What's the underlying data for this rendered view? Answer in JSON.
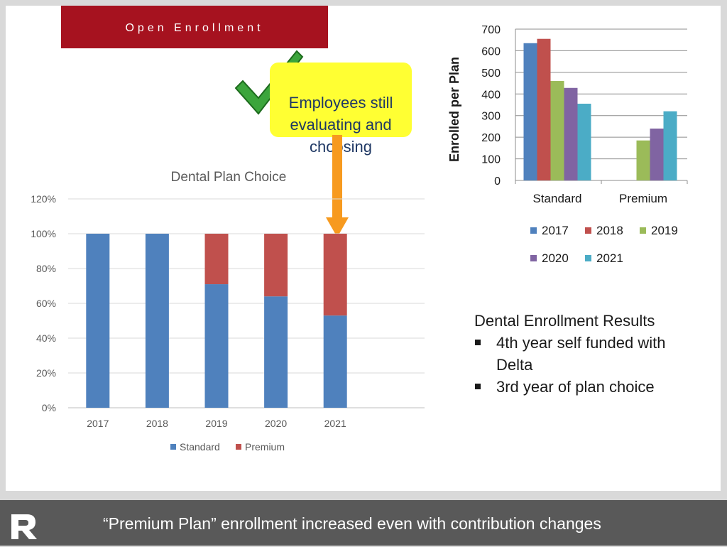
{
  "header": {
    "title": "Open Enrollment"
  },
  "callout": {
    "text": "Employees still\nevaluating and\nchoosing"
  },
  "results": {
    "heading": "Dental Enrollment Results",
    "bullets": [
      "4th year self funded with Delta",
      "3rd year of plan choice"
    ]
  },
  "footer": {
    "text": "“Premium Plan” enrollment increased even with contribution changes"
  },
  "colors": {
    "header": "#a6121f",
    "callout": "#ffff33",
    "arrow": "#f79a1f",
    "check": "#3ca53c",
    "standard": "#4f81bd",
    "premium": "#c0504d",
    "y2017": "#4f81bd",
    "y2018": "#c0504d",
    "y2019": "#9bbb59",
    "y2020": "#8064a2",
    "y2021": "#4bacc6"
  },
  "icons": {
    "check": "green-checkmark-icon",
    "arrow": "orange-down-arrow-icon",
    "logo": "r-logo-icon"
  },
  "chart_data": [
    {
      "id": "plan-choice",
      "type": "bar",
      "stacked": true,
      "title": "Dental Plan Choice",
      "categories": [
        "2017",
        "2018",
        "2019",
        "2020",
        "2021"
      ],
      "series": [
        {
          "name": "Standard",
          "values": [
            100,
            100,
            71,
            64,
            53
          ]
        },
        {
          "name": "Premium",
          "values": [
            0,
            0,
            29,
            36,
            47
          ]
        }
      ],
      "yticks": [
        "0%",
        "20%",
        "40%",
        "60%",
        "80%",
        "100%",
        "120%"
      ],
      "ylim": [
        0,
        120
      ],
      "grid": true,
      "legend": "bottom"
    },
    {
      "id": "enrolled",
      "type": "bar",
      "title": "",
      "ylabel": "Enrolled per Plan",
      "categories": [
        "Standard",
        "Premium"
      ],
      "series": [
        {
          "name": "2017",
          "values": [
            635,
            0
          ]
        },
        {
          "name": "2018",
          "values": [
            655,
            0
          ]
        },
        {
          "name": "2019",
          "values": [
            460,
            185
          ]
        },
        {
          "name": "2020",
          "values": [
            428,
            240
          ]
        },
        {
          "name": "2021",
          "values": [
            355,
            320
          ]
        }
      ],
      "yticks": [
        "0",
        "100",
        "200",
        "300",
        "400",
        "500",
        "600",
        "700"
      ],
      "ylim": [
        0,
        700
      ],
      "grid": true,
      "legend": "bottom"
    }
  ]
}
